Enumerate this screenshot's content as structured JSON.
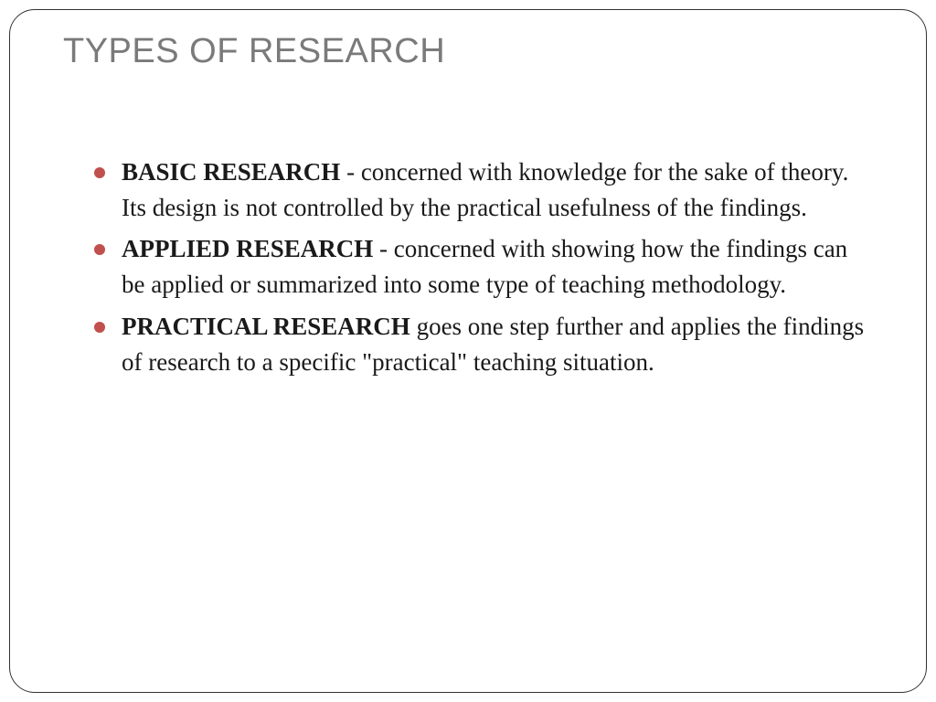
{
  "title": "TYPES OF RESEARCH",
  "bullet_color": "#c0504d",
  "title_color": "#7a7a7a",
  "text_color": "#1a1a1a",
  "border_color": "#333333",
  "background_color": "#ffffff",
  "title_fontsize": 38,
  "body_fontsize": 27,
  "items": [
    {
      "term": "BASIC RESEARCH",
      "separator": " - ",
      "desc": "concerned with knowledge for the sake of theory. Its design is not controlled by the practical usefulness of the findings."
    },
    {
      "term": "APPLIED RESEARCH",
      "separator": " - ",
      "desc": "concerned with showing how the findings can be applied or summarized into some type of teaching methodology."
    },
    {
      "term": "PRACTICAL RESEARCH",
      "separator": " ",
      "desc": "goes one step further and applies the findings of research to a specific \"practical\" teaching situation."
    }
  ]
}
